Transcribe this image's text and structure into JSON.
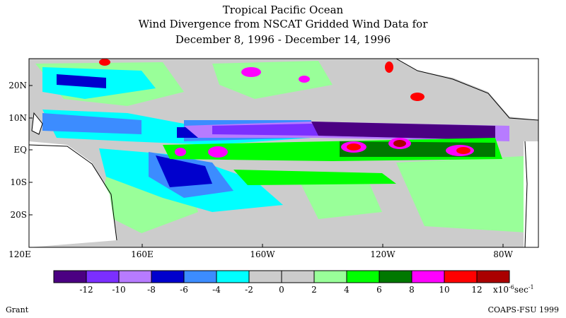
{
  "header": {
    "title": "Tropical Pacific Ocean",
    "subtitle": "Wind Divergence from NSCAT Gridded Wind Data for",
    "date_range": "December 8, 1996 - December 14, 1996"
  },
  "map": {
    "lat_labels": [
      "20N",
      "10N",
      "EQ",
      "10S",
      "20S"
    ],
    "lon_labels": [
      "120E",
      "160E",
      "160W",
      "120W",
      "80W"
    ],
    "lat_range": [
      -30,
      28
    ],
    "lon_range": [
      "120E",
      "75W"
    ]
  },
  "colorbar": {
    "colors": [
      "#4b0082",
      "#7b2fff",
      "#b77bff",
      "#0000cd",
      "#3c8cff",
      "#00ffff",
      "#cccccc",
      "#cccccc",
      "#99ff99",
      "#00ff00",
      "#007800",
      "#ff00ff",
      "#ff0000",
      "#aa0000"
    ],
    "tick_labels": [
      "-12",
      "-10",
      "-8",
      "-6",
      "-4",
      "-2",
      "0",
      "2",
      "4",
      "6",
      "8",
      "10",
      "12"
    ],
    "unit_prefix": "x10",
    "unit_exp": "-6",
    "unit_suffix": "sec",
    "unit_suffix_exp": "-1"
  },
  "footer": {
    "left": "Grant",
    "right": "COAPS-FSU 1999"
  }
}
